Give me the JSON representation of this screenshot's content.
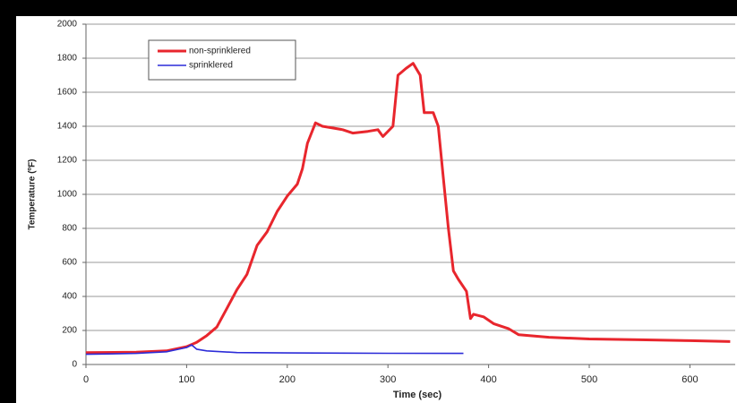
{
  "chart_data": {
    "type": "line",
    "x_label": "Time (sec)",
    "y_label": "Temperature (ºF)",
    "xlim": [
      0,
      645
    ],
    "ylim": [
      0,
      2000
    ],
    "xticks": [
      0,
      100,
      200,
      300,
      400,
      500,
      600
    ],
    "yticks": [
      0,
      200,
      400,
      600,
      800,
      1000,
      1200,
      1400,
      1600,
      1800,
      2000
    ],
    "grid": true,
    "legend": "upper left",
    "series": [
      {
        "name": "non-sprinklered",
        "color": "#e8262d",
        "x": [
          0,
          50,
          80,
          100,
          110,
          120,
          130,
          140,
          150,
          160,
          170,
          180,
          190,
          200,
          210,
          215,
          220,
          228,
          235,
          245,
          255,
          265,
          280,
          290,
          295,
          305,
          310,
          318,
          325,
          332,
          336,
          345,
          350,
          355,
          360,
          365,
          370,
          378,
          382,
          385,
          395,
          405,
          420,
          430,
          460,
          500,
          550,
          600,
          640
        ],
        "values": [
          70,
          72,
          80,
          105,
          130,
          170,
          220,
          330,
          440,
          530,
          700,
          780,
          900,
          990,
          1060,
          1150,
          1300,
          1420,
          1400,
          1390,
          1380,
          1360,
          1370,
          1380,
          1340,
          1400,
          1700,
          1740,
          1770,
          1700,
          1480,
          1480,
          1400,
          1100,
          800,
          550,
          500,
          430,
          270,
          295,
          280,
          240,
          210,
          175,
          160,
          150,
          145,
          140,
          135
        ]
      },
      {
        "name": "sprinklered",
        "color": "#2c2cd8",
        "x": [
          0,
          50,
          80,
          100,
          105,
          110,
          120,
          150,
          200,
          300,
          375
        ],
        "values": [
          60,
          65,
          75,
          100,
          115,
          90,
          80,
          70,
          68,
          66,
          65
        ]
      }
    ]
  }
}
